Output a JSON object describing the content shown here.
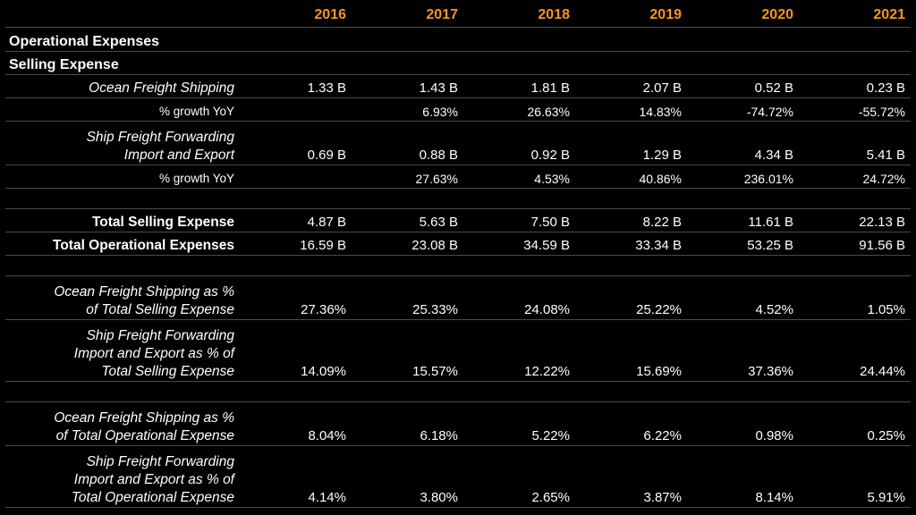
{
  "years": [
    "2016",
    "2017",
    "2018",
    "2019",
    "2020",
    "2021"
  ],
  "sections": {
    "operational_expenses": "Operational Expenses",
    "selling_expense": "Selling Expense"
  },
  "rows": {
    "ocean_freight": {
      "label": "Ocean Freight Shipping",
      "values": [
        "1.33  B",
        "1.43  B",
        "1.81  B",
        "2.07  B",
        "0.52  B",
        "0.23  B"
      ]
    },
    "ocean_freight_growth": {
      "label": "% growth YoY",
      "values": [
        "",
        "6.93%",
        "26.63%",
        "14.83%",
        "-74.72%",
        "-55.72%"
      ]
    },
    "ship_forwarding": {
      "label_line1": "Ship Freight Forwarding",
      "label_line2": "Import and Export",
      "values": [
        "0.69  B",
        "0.88  B",
        "0.92  B",
        "1.29  B",
        "4.34  B",
        "5.41  B"
      ]
    },
    "ship_forwarding_growth": {
      "label": "% growth YoY",
      "values": [
        "",
        "27.63%",
        "4.53%",
        "40.86%",
        "236.01%",
        "24.72%"
      ]
    },
    "total_selling": {
      "label": "Total Selling Expense",
      "values": [
        "4.87  B",
        "5.63  B",
        "7.50  B",
        "8.22  B",
        "11.61  B",
        "22.13  B"
      ]
    },
    "total_operational": {
      "label": "Total Operational Expenses",
      "values": [
        "16.59  B",
        "23.08  B",
        "34.59  B",
        "33.34  B",
        "53.25  B",
        "91.56  B"
      ]
    },
    "ocean_pct_selling": {
      "label_line1": "Ocean Freight Shipping as %",
      "label_line2": "of Total Selling Expense",
      "values": [
        "27.36%",
        "25.33%",
        "24.08%",
        "25.22%",
        "4.52%",
        "1.05%"
      ]
    },
    "ship_pct_selling": {
      "label_line1": "Ship Freight Forwarding",
      "label_line2": "Import and Export as % of",
      "label_line3": "Total Selling Expense",
      "values": [
        "14.09%",
        "15.57%",
        "12.22%",
        "15.69%",
        "37.36%",
        "24.44%"
      ]
    },
    "ocean_pct_operational": {
      "label_line1": "Ocean Freight Shipping as %",
      "label_line2": "of Total Operational Expense",
      "values": [
        "8.04%",
        "6.18%",
        "5.22%",
        "6.22%",
        "0.98%",
        "0.25%"
      ]
    },
    "ship_pct_operational": {
      "label_line1": "Ship Freight Forwarding",
      "label_line2": "Import and Export as % of",
      "label_line3": "Total Operational Expense",
      "values": [
        "4.14%",
        "3.80%",
        "2.65%",
        "3.87%",
        "8.14%",
        "5.91%"
      ]
    }
  },
  "colors": {
    "background": "#000000",
    "text": "#ffffff",
    "year_header": "#f7941d",
    "divider": "#4a4a4a"
  }
}
